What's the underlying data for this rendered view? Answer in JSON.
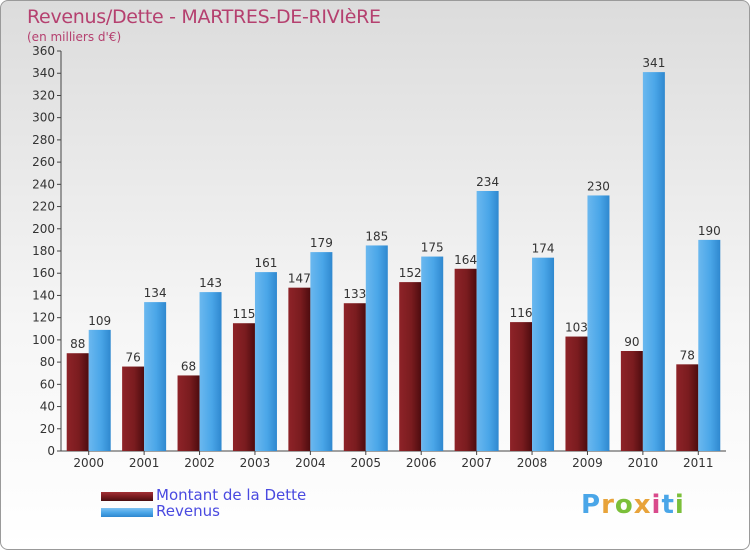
{
  "title": "Revenus/Dette - MARTRES-DE-RIVIèRE",
  "subtitle": "(en milliers d'€)",
  "colors": {
    "debt": "#7a1c1f",
    "revenue": "#4aa6e8",
    "title": "#b5406f",
    "legend_text": "#4a4ae0"
  },
  "chart_data": {
    "type": "bar",
    "categories": [
      "2000",
      "2001",
      "2002",
      "2003",
      "2004",
      "2005",
      "2006",
      "2007",
      "2008",
      "2009",
      "2010",
      "2011"
    ],
    "series": [
      {
        "name": "Montant de la Dette",
        "values": [
          88,
          76,
          68,
          115,
          147,
          133,
          152,
          164,
          116,
          103,
          90,
          78
        ]
      },
      {
        "name": "Revenus",
        "values": [
          109,
          134,
          143,
          161,
          179,
          185,
          175,
          234,
          174,
          230,
          341,
          190
        ]
      }
    ],
    "ylim": [
      0,
      360
    ],
    "yticks": [
      0,
      20,
      40,
      60,
      80,
      100,
      120,
      140,
      160,
      180,
      200,
      220,
      240,
      260,
      280,
      300,
      320,
      340,
      360
    ],
    "grid": false,
    "legend": "bottom-left"
  },
  "legend": {
    "debt_label": "Montant de la Dette",
    "revenue_label": "Revenus"
  },
  "logo": {
    "letters": [
      "P",
      "r",
      "o",
      "x",
      "i",
      "t",
      "i"
    ],
    "letter_colors": [
      "#4aa6e8",
      "#e8a33a",
      "#7bbf3a",
      "#e8a33a",
      "#d94a8c",
      "#4aa6e8",
      "#7bbf3a"
    ]
  }
}
